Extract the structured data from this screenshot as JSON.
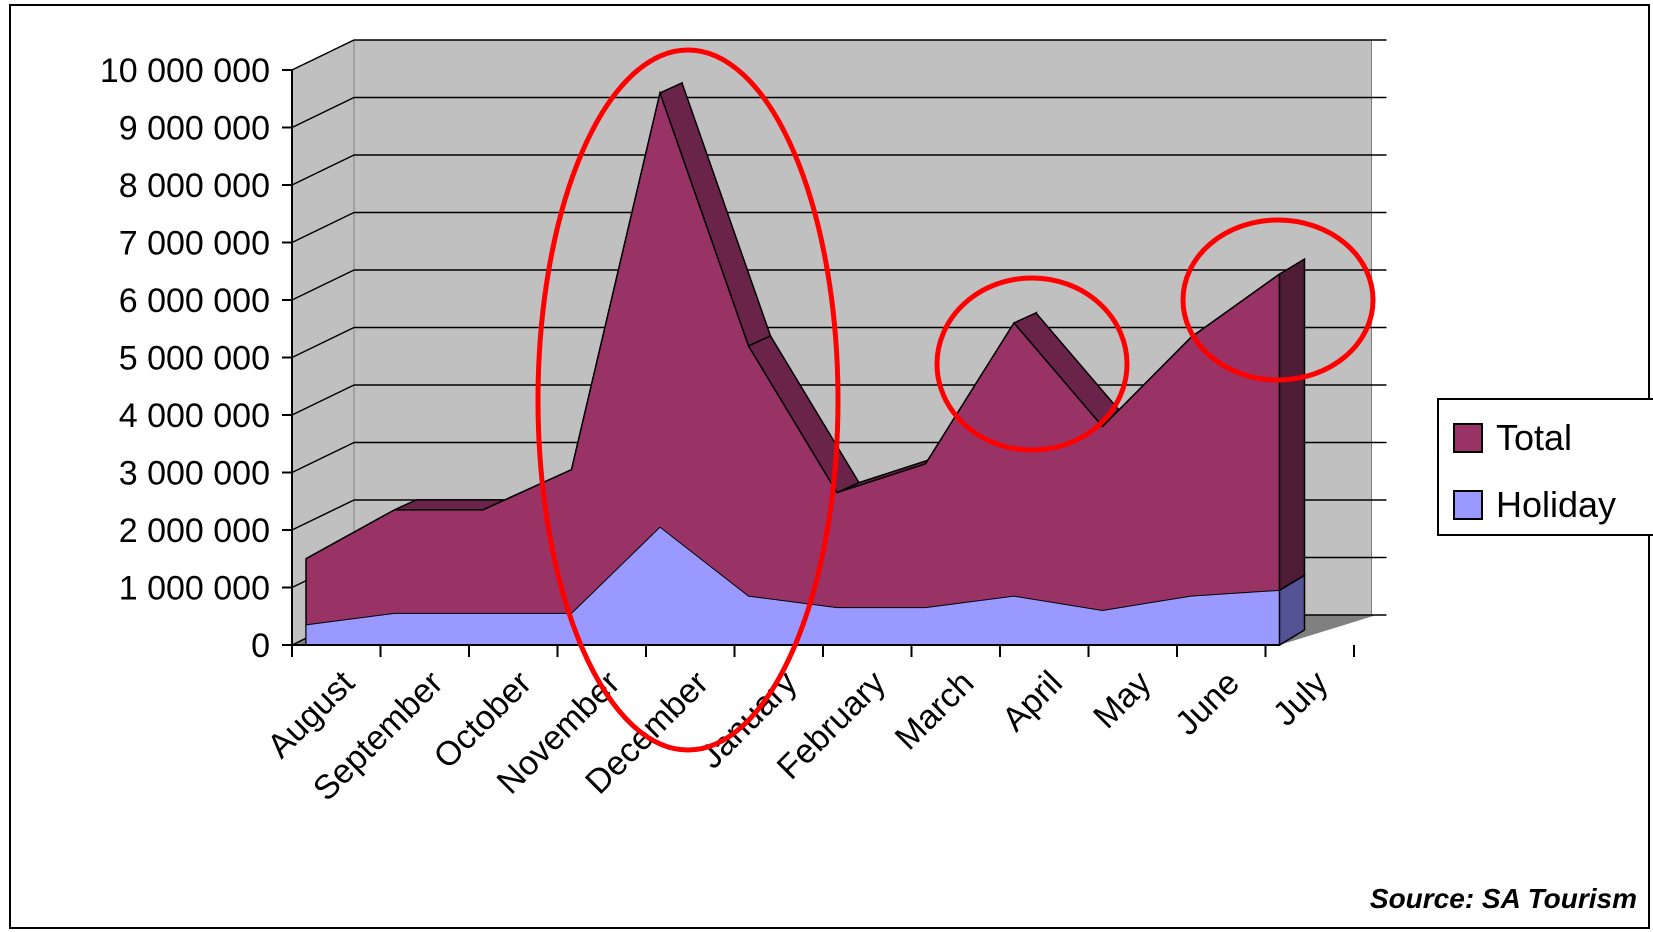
{
  "chart_data": {
    "type": "area",
    "stacked": true,
    "three_d": true,
    "categories": [
      "August",
      "September",
      "October",
      "November",
      "December",
      "January",
      "February",
      "March",
      "April",
      "May",
      "June",
      "July"
    ],
    "series": [
      {
        "name": "Total",
        "values": [
          1500000,
          2350000,
          2350000,
          3050000,
          9600000,
          5200000,
          2650000,
          3150000,
          5600000,
          3800000,
          5350000,
          6450000
        ]
      },
      {
        "name": "Holiday",
        "values": [
          350000,
          550000,
          550000,
          550000,
          2050000,
          850000,
          650000,
          650000,
          850000,
          600000,
          850000,
          950000
        ]
      }
    ],
    "y_ticks": [
      "0",
      "1 000 000",
      "2 000 000",
      "3 000 000",
      "4 000 000",
      "5 000 000",
      "6 000 000",
      "7 000 000",
      "8 000 000",
      "9 000 000",
      "10 000 000"
    ],
    "ylim": [
      0,
      10000000
    ],
    "grid": true,
    "legend_position": "right",
    "annotation_highlights": [
      "December-February",
      "April-May",
      "July"
    ],
    "colors": {
      "total": "#993366",
      "total_side": "#6b2449",
      "total_end": "#4f1c35",
      "holiday": "#9999ff",
      "holiday_end": "#525294",
      "wall": "#c0c0c0",
      "floor": "#808080",
      "highlight": "#ff0000"
    }
  },
  "source": "Source: SA Tourism"
}
